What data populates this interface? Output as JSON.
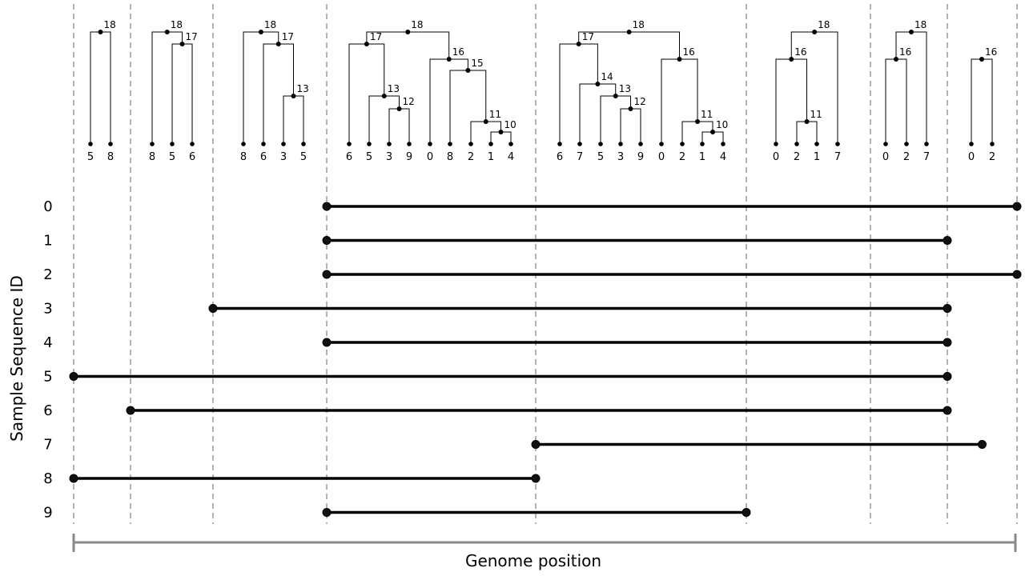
{
  "figure": {
    "y_axis_title": "Sample Sequence ID",
    "x_axis_title": "Genome position"
  },
  "sample_ids": [
    "0",
    "1",
    "2",
    "3",
    "4",
    "5",
    "6",
    "7",
    "8",
    "9"
  ],
  "intervals": [
    {
      "id": "0",
      "start": 3,
      "end": 8
    },
    {
      "id": "1",
      "start": 3,
      "end": 7
    },
    {
      "id": "2",
      "start": 3,
      "end": 8
    },
    {
      "id": "3",
      "start": 2,
      "end": 7
    },
    {
      "id": "4",
      "start": 3,
      "end": 7
    },
    {
      "id": "5",
      "start": 0,
      "end": 7
    },
    {
      "id": "6",
      "start": 1,
      "end": 7
    },
    {
      "id": "7",
      "start": 4,
      "end": 7.5
    },
    {
      "id": "8",
      "start": 0,
      "end": 4
    },
    {
      "id": "9",
      "start": 3,
      "end": 5
    }
  ],
  "trees": [
    {
      "leaves": [
        "5",
        "8"
      ],
      "internal": [
        {
          "label": "18",
          "children": [
            0,
            1
          ]
        }
      ]
    },
    {
      "leaves": [
        "8",
        "5",
        "6"
      ],
      "internal": [
        {
          "label": "17",
          "children": [
            1,
            2
          ]
        },
        {
          "label": "18",
          "children": [
            0,
            "17"
          ]
        }
      ]
    },
    {
      "leaves": [
        "8",
        "6",
        "3",
        "5"
      ],
      "internal": [
        {
          "label": "13",
          "children": [
            2,
            3
          ]
        },
        {
          "label": "17",
          "children": [
            1,
            "13"
          ]
        },
        {
          "label": "18",
          "children": [
            0,
            "17"
          ]
        }
      ]
    },
    {
      "leaves": [
        "6",
        "5",
        "3",
        "9",
        "0",
        "8",
        "2",
        "1",
        "4"
      ],
      "internal": [
        {
          "label": "12",
          "children": [
            2,
            3
          ]
        },
        {
          "label": "13",
          "children": [
            1,
            "12"
          ]
        },
        {
          "label": "17",
          "children": [
            0,
            "13"
          ]
        },
        {
          "label": "10",
          "children": [
            7,
            8
          ]
        },
        {
          "label": "11",
          "children": [
            6,
            "10"
          ]
        },
        {
          "label": "15",
          "children": [
            5,
            "11"
          ]
        },
        {
          "label": "16",
          "children": [
            4,
            "15"
          ]
        },
        {
          "label": "18",
          "children": [
            "17",
            "16"
          ]
        }
      ]
    },
    {
      "leaves": [
        "6",
        "7",
        "5",
        "3",
        "9",
        "0",
        "2",
        "1",
        "4"
      ],
      "internal": [
        {
          "label": "12",
          "children": [
            3,
            4
          ]
        },
        {
          "label": "13",
          "children": [
            2,
            "12"
          ]
        },
        {
          "label": "14",
          "children": [
            1,
            "13"
          ]
        },
        {
          "label": "17",
          "children": [
            0,
            "14"
          ]
        },
        {
          "label": "10",
          "children": [
            7,
            8
          ]
        },
        {
          "label": "11",
          "children": [
            6,
            "10"
          ]
        },
        {
          "label": "16",
          "children": [
            5,
            "11"
          ]
        },
        {
          "label": "18",
          "children": [
            "17",
            "16"
          ]
        }
      ]
    },
    {
      "leaves": [
        "0",
        "2",
        "1",
        "7"
      ],
      "internal": [
        {
          "label": "11",
          "children": [
            1,
            2
          ]
        },
        {
          "label": "16",
          "children": [
            0,
            "11"
          ]
        },
        {
          "label": "18",
          "children": [
            "16",
            3
          ]
        }
      ]
    },
    {
      "leaves": [
        "0",
        "2",
        "7"
      ],
      "internal": [
        {
          "label": "16",
          "children": [
            0,
            1
          ]
        },
        {
          "label": "18",
          "children": [
            "16",
            2
          ]
        }
      ]
    },
    {
      "leaves": [
        "0",
        "2"
      ],
      "internal": [
        {
          "label": "16",
          "children": [
            0,
            1
          ]
        }
      ]
    }
  ]
}
